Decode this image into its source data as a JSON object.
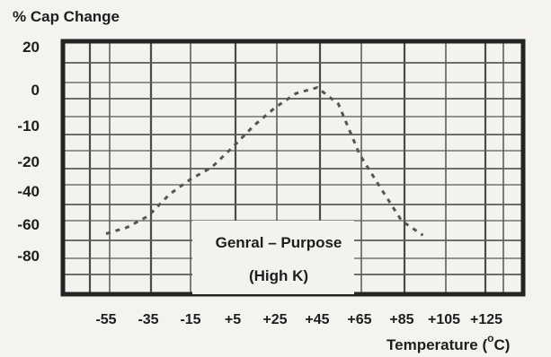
{
  "chart_data": {
    "type": "line",
    "ylabel": "% Cap Change",
    "xlabel": "Temperature (",
    "xlabel_super": "o",
    "xlabel_tail": "C)",
    "annotation": [
      "Genral – Purpose",
      "(High K)"
    ],
    "x_ticks": [
      "-55",
      "-35",
      "-15",
      "+5",
      "+25",
      "+45",
      "+65",
      "+85",
      "+105",
      "+125"
    ],
    "x_tick_values": [
      -55,
      -35,
      -15,
      5,
      25,
      45,
      65,
      85,
      105,
      125
    ],
    "y_ticks": [
      "20",
      "0",
      "-10",
      "-20",
      "-40",
      "-60",
      "-80"
    ],
    "grid": true,
    "series": [
      {
        "style": "dashed",
        "x": [
          -55,
          -45,
          -35,
          -25,
          -15,
          -5,
          5,
          15,
          25,
          35,
          45,
          55,
          65,
          75,
          85,
          95
        ],
        "y": [
          -66,
          -62,
          -55,
          -42,
          -32,
          -24,
          -16,
          -10,
          -5,
          -1,
          1,
          -4,
          -18,
          -38,
          -58,
          -67
        ]
      }
    ]
  }
}
